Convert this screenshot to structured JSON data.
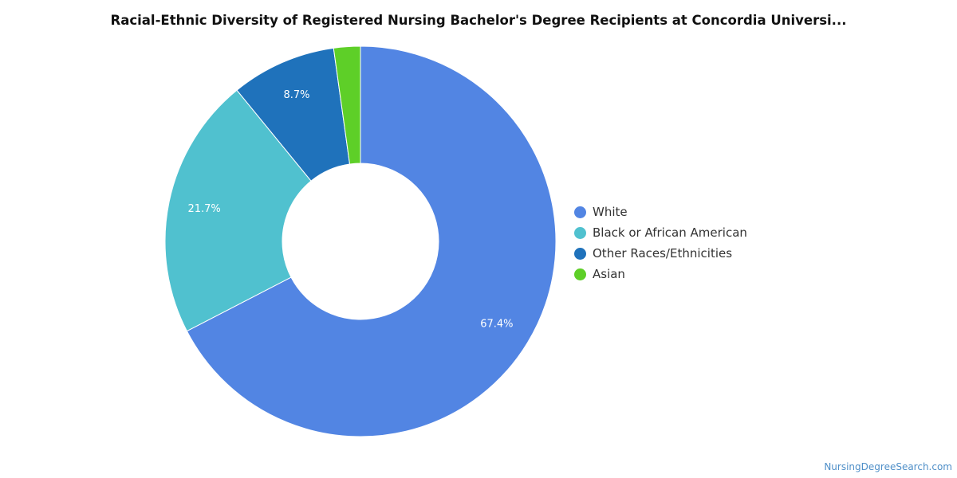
{
  "chart_data": {
    "type": "pie",
    "title": "Racial-Ethnic Diversity of Registered Nursing Bachelor's Degree Recipients at Concordia Universi...",
    "variant": "donut",
    "legend_position": "right",
    "slices": [
      {
        "label": "White",
        "value": 67.4,
        "value_label": "67.4%",
        "color": "#5285e3"
      },
      {
        "label": "Black or African American",
        "value": 21.7,
        "value_label": "21.7%",
        "color": "#50c1cf"
      },
      {
        "label": "Other Races/Ethnicities",
        "value": 8.7,
        "value_label": "8.7%",
        "color": "#1f72bb"
      },
      {
        "label": "Asian",
        "value": 2.2,
        "value_label": "",
        "color": "#5ecf28"
      }
    ]
  },
  "watermark": "NursingDegreeSearch.com"
}
